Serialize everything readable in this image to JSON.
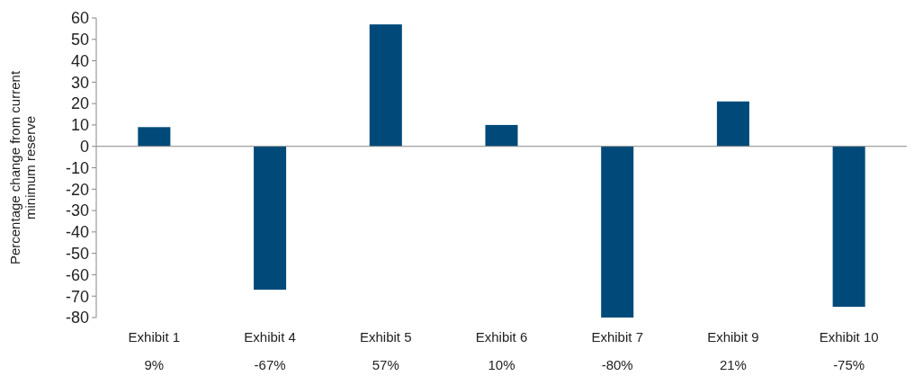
{
  "chart_data": {
    "type": "bar",
    "ylabel": "Percentage change from current minimum reserve",
    "categories": [
      "Exhibit 1",
      "Exhibit 4",
      "Exhibit 5",
      "Exhibit 6",
      "Exhibit 7",
      "Exhibit 9",
      "Exhibit 10"
    ],
    "values": [
      9,
      -67,
      57,
      10,
      -80,
      21,
      -75
    ],
    "value_labels": [
      "9%",
      "-67%",
      "57%",
      "10%",
      "-80%",
      "21%",
      "-75%"
    ],
    "color": "#004a7a",
    "ylim": [
      -80,
      60
    ],
    "yticks": [
      -80,
      -70,
      -60,
      -50,
      -40,
      -30,
      -20,
      -10,
      0,
      10,
      20,
      30,
      40,
      50,
      60
    ]
  }
}
